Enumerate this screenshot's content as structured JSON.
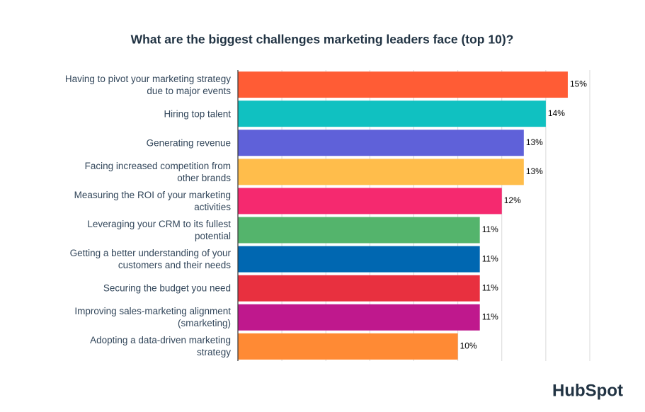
{
  "chart_data": {
    "type": "hbar",
    "title": "What are the biggest challenges marketing leaders face (top 10)?",
    "categories": [
      "Having to pivot your marketing strategy due to major events",
      "Hiring top talent",
      "Generating revenue",
      "Facing increased competition from other brands",
      "Measuring the ROI of your marketing activities",
      "Leveraging your CRM to its fullest potential",
      "Getting a better understanding of your customers and their needs",
      "Securing the budget you need",
      "Improving sales-marketing alignment (smarketing)",
      "Adopting a data-driven marketing strategy"
    ],
    "values": [
      15,
      14,
      13,
      13,
      12,
      11,
      11,
      11,
      11,
      10
    ],
    "value_labels": [
      "15%",
      "14%",
      "13%",
      "13%",
      "12%",
      "11%",
      "11%",
      "11%",
      "11%",
      "10%"
    ],
    "colors": [
      "#ff5c35",
      "#10c1c1",
      "#5f61d9",
      "#ffbd4b",
      "#f5296f",
      "#54b46c",
      "#0067b1",
      "#e8303f",
      "#bf188d",
      "#ff8a34"
    ],
    "xlim": [
      0,
      16
    ],
    "xticks": [
      2,
      4,
      6,
      8,
      10,
      12,
      14,
      16
    ],
    "grid": true
  },
  "brand": "HubSpot"
}
